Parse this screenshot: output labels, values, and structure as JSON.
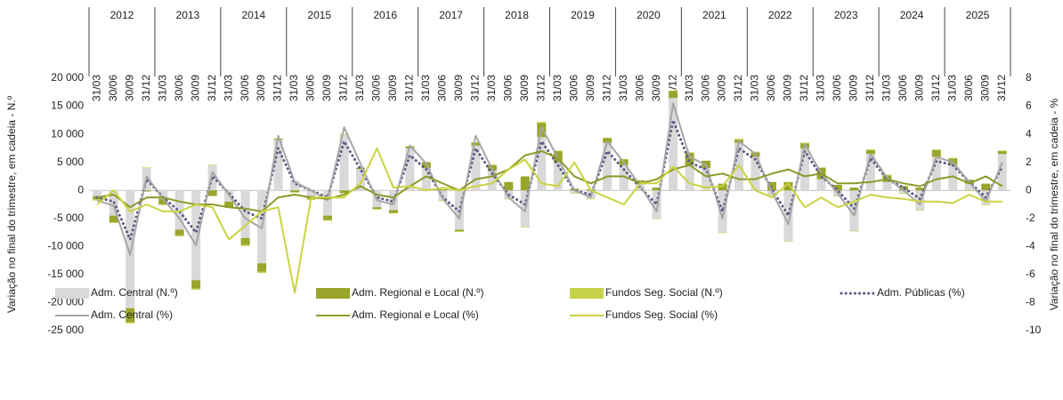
{
  "chart_data": {
    "type": "combo",
    "y_label": "Variação no final do trimestre, em cadeia - N.º",
    "y2_label": "Variação no final do trimestre, em cadeia - %",
    "years": [
      "2012",
      "2013",
      "2014",
      "2015",
      "2016",
      "2017",
      "2018",
      "2019",
      "2020",
      "2021",
      "2022",
      "2023",
      "2024",
      "2025"
    ],
    "categories": [
      "31/03",
      "30/06",
      "30/09",
      "31/12",
      "31/03",
      "30/06",
      "30/09",
      "31/12",
      "31/03",
      "30/06",
      "30/09",
      "31/12",
      "31/03",
      "30/06",
      "30/09",
      "31/12",
      "31/03",
      "30/06",
      "30/09",
      "31/12",
      "31/03",
      "30/06",
      "30/09",
      "31/12",
      "31/03",
      "30/06",
      "30/09",
      "31/12",
      "31/03",
      "30/06",
      "30/09",
      "31/12",
      "31/03",
      "30/06",
      "30/09",
      "31/12",
      "31/03",
      "30/06",
      "30/09",
      "31/12",
      "31/03",
      "30/06",
      "30/09",
      "31/12",
      "31/03",
      "30/06",
      "30/09",
      "31/12",
      "31/03",
      "30/06",
      "30/09",
      "31/12",
      "31/03",
      "30/06",
      "30/09",
      "31/12"
    ],
    "ylim": [
      -25000,
      20000
    ],
    "yticks": [
      {
        "value": 20000,
        "label": "20 000"
      },
      {
        "value": 15000,
        "label": "15 000"
      },
      {
        "value": 10000,
        "label": "10 000"
      },
      {
        "value": 5000,
        "label": "5 000"
      },
      0,
      {
        "value": -5000,
        "label": "-5 000"
      },
      {
        "value": -10000,
        "label": "-10 000"
      },
      {
        "value": -15000,
        "label": "-15 000"
      },
      {
        "value": -20000,
        "label": "-20 000"
      },
      {
        "value": -25000,
        "label": "-25 000"
      }
    ],
    "y2lim": [
      -10,
      8
    ],
    "y2ticks": [
      8,
      6,
      4,
      2,
      0,
      -2,
      -4,
      -6,
      -8,
      -10
    ],
    "series": [
      {
        "name": "Adm. Central (N.º)",
        "type": "bar",
        "color": "#d9d9d9",
        "values": [
          -1000,
          -4500,
          -21000,
          4000,
          -1500,
          -7000,
          -16000,
          4500,
          -2000,
          -8500,
          -13000,
          9000,
          1800,
          -1000,
          -4500,
          10000,
          3800,
          -3000,
          -3500,
          7500,
          4000,
          -1800,
          -7000,
          8000,
          3500,
          -1500,
          -6500,
          9500,
          5000,
          -500,
          -1500,
          8500,
          4500,
          1500,
          -5000,
          16500,
          4500,
          4000,
          -7500,
          8500,
          6000,
          -800,
          -9000,
          7500,
          2000,
          -1000,
          -7200,
          6500,
          1500,
          -500,
          -3500,
          6000,
          4500,
          1200,
          -2500,
          6500
        ]
      },
      {
        "name": "Adm. Regional e Local (N.º)",
        "type": "bar",
        "color": "#9aa52b",
        "values": [
          -600,
          -1200,
          -2500,
          -200,
          -1000,
          -1000,
          -1500,
          -1000,
          -1000,
          -1200,
          -1500,
          200,
          -300,
          -500,
          -800,
          -500,
          200,
          -300,
          -500,
          300,
          1000,
          200,
          -300,
          500,
          1000,
          1500,
          2500,
          2500,
          2000,
          300,
          200,
          800,
          1000,
          300,
          500,
          1200,
          2200,
          1300,
          1200,
          500,
          800,
          1500,
          1500,
          900,
          2000,
          1000,
          500,
          700,
          1200,
          800,
          500,
          1200,
          1200,
          700,
          1200,
          500
        ]
      },
      {
        "name": "Fundos Seg. Social (N.º)",
        "type": "bar",
        "color": "#c5d24a",
        "values": [
          -200,
          -100,
          -200,
          100,
          -100,
          -200,
          -200,
          100,
          -100,
          -200,
          -200,
          100,
          -100,
          -200,
          -100,
          100,
          100,
          -100,
          -100,
          100,
          100,
          -100,
          -100,
          100,
          100,
          -100,
          -100,
          200,
          100,
          -100,
          -100,
          100,
          100,
          -100,
          -100,
          100,
          100,
          -100,
          -100,
          200,
          100,
          -100,
          -100,
          100,
          100,
          -100,
          -100,
          100,
          100,
          -100,
          -100,
          100,
          100,
          -100,
          -100,
          100
        ]
      },
      {
        "name": "Adm. Públicas (%)",
        "type": "line",
        "axis": "y2",
        "dash": "dotted",
        "color": "#5b5a86",
        "values": [
          -0.5,
          -0.8,
          -3.5,
          0.8,
          -0.5,
          -1.5,
          -3,
          1,
          -0.2,
          -1.5,
          -2,
          3,
          0.5,
          0,
          -0.5,
          3.5,
          1.5,
          -0.5,
          -0.8,
          2.5,
          1.5,
          -0.5,
          -1.5,
          3,
          1.2,
          -0.3,
          -1,
          3.5,
          1.8,
          0,
          -0.3,
          2.8,
          1.5,
          0.2,
          -1,
          5,
          2,
          1.5,
          -1.5,
          3,
          2.2,
          0.1,
          -1.8,
          2.8,
          1,
          0,
          -1.3,
          2.3,
          0.8,
          0.2,
          -0.6,
          2.1,
          1.8,
          0.6,
          -0.5,
          1.7
        ]
      },
      {
        "name": "Adm. Central (%)",
        "type": "line",
        "axis": "y2",
        "color": "#a6a6a6",
        "values": [
          -0.7,
          -1.1,
          -4.6,
          1.0,
          -0.6,
          -2.0,
          -3.9,
          1.3,
          -0.3,
          -2.0,
          -2.7,
          3.9,
          0.6,
          0,
          -0.7,
          4.5,
          1.9,
          -0.7,
          -1.0,
          3.2,
          1.9,
          -0.6,
          -2.0,
          3.9,
          1.5,
          -0.5,
          -1.5,
          4.5,
          2.3,
          0,
          -0.5,
          3.5,
          2.0,
          0.3,
          -1.5,
          6.2,
          2.4,
          1.8,
          -2.0,
          3.5,
          2.6,
          -0.1,
          -2.4,
          3.3,
          1.2,
          -0.2,
          -1.8,
          2.6,
          0.9,
          0,
          -1.0,
          2.4,
          2.0,
          0.6,
          -0.8,
          2.0
        ]
      },
      {
        "name": "Adm. Regional e Local (%)",
        "type": "line",
        "axis": "y2",
        "color": "#8c9a2a",
        "values": [
          -0.5,
          -0.3,
          -1.2,
          -0.5,
          -0.5,
          -0.8,
          -1.0,
          -1.0,
          -1.2,
          -1.3,
          -1.5,
          -0.5,
          -0.3,
          -0.5,
          -0.6,
          -0.3,
          0.3,
          -0.3,
          -0.5,
          0.3,
          1.0,
          0.5,
          0,
          0.8,
          1.0,
          1.5,
          2.5,
          2.8,
          2.3,
          1.0,
          0.5,
          1.0,
          1.0,
          0.5,
          0.8,
          1.5,
          1.8,
          1.0,
          1.2,
          0.8,
          0.8,
          1.2,
          1.5,
          1.0,
          1.2,
          0.5,
          0.5,
          0.6,
          0.8,
          0.5,
          0.3,
          0.8,
          1.0,
          0.5,
          1.0,
          0.3
        ]
      },
      {
        "name": "Fundos Seg. Social (%)",
        "type": "line",
        "axis": "y2",
        "color": "#c9d43f",
        "values": [
          -1.0,
          0,
          -1.5,
          -1.0,
          -1.5,
          -1.5,
          -1.0,
          -1.2,
          -3.5,
          -2.5,
          -1.5,
          -1.2,
          -7.3,
          -0.5,
          -0.5,
          -0.5,
          0.5,
          3.0,
          0.2,
          0.3,
          0,
          0.2,
          0,
          0.3,
          0.5,
          1.5,
          2.2,
          0.5,
          0.3,
          2.0,
          0,
          -0.5,
          -1.0,
          0.5,
          0.5,
          1.7,
          0.5,
          0.2,
          0.3,
          1.8,
          0,
          -0.5,
          0.5,
          -1.2,
          -0.5,
          -1.2,
          -0.8,
          -0.3,
          -0.5,
          -0.6,
          -0.8,
          -0.8,
          -0.9,
          -0.3,
          -0.8,
          -0.8
        ]
      }
    ]
  }
}
